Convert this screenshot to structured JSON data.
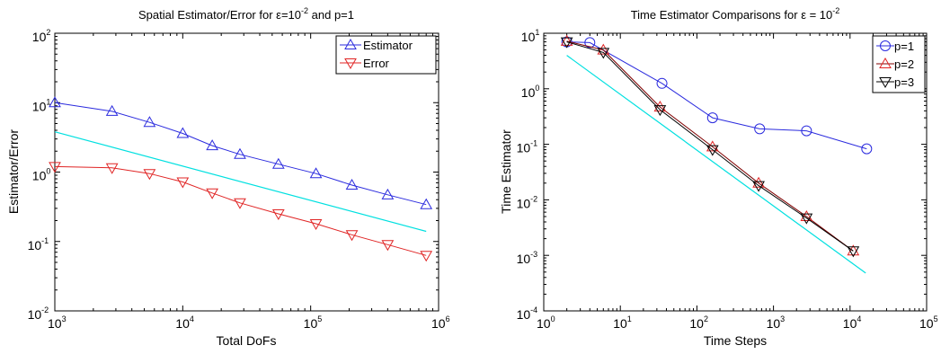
{
  "colors": {
    "blue": "#2b2bde",
    "red": "#e02424",
    "black": "#000000",
    "dark_red": "#800000",
    "cyan": "#00e0e0"
  },
  "chart_data": [
    {
      "type": "line",
      "title": "Spatial Estimator/Error for ε=10⁻² and p=1",
      "title_parts": {
        "text": "Spatial Estimator/Error for ε=10",
        "exp": "-2",
        "tail": " and p=1"
      },
      "xlabel": "Total DoFs",
      "ylabel": "Estimator/Error",
      "xscale": "log",
      "yscale": "log",
      "xlim": [
        1000,
        1000000
      ],
      "ylim": [
        0.01,
        100
      ],
      "x_ticks": [
        {
          "base": "10",
          "exp": "3",
          "value": 1000
        },
        {
          "base": "10",
          "exp": "4",
          "value": 10000
        },
        {
          "base": "10",
          "exp": "5",
          "value": 100000
        },
        {
          "base": "10",
          "exp": "6",
          "value": 1000000
        }
      ],
      "y_ticks": [
        {
          "base": "10",
          "exp": "-2",
          "value": 0.01
        },
        {
          "base": "10",
          "exp": "-1",
          "value": 0.1
        },
        {
          "base": "10",
          "exp": "0",
          "value": 1
        },
        {
          "base": "10",
          "exp": "1",
          "value": 10
        },
        {
          "base": "10",
          "exp": "2",
          "value": 100
        }
      ],
      "legend_position": "top-right",
      "series": [
        {
          "name": "Estimator",
          "color": "blue",
          "marker": "triangle-up",
          "in_legend": true,
          "x": [
            1000,
            2800,
            5500,
            10000,
            17000,
            28000,
            56000,
            110000,
            210000,
            400000,
            800000
          ],
          "y": [
            10,
            7.5,
            5.2,
            3.6,
            2.4,
            1.8,
            1.3,
            0.95,
            0.65,
            0.47,
            0.34
          ]
        },
        {
          "name": "Error",
          "color": "red",
          "marker": "triangle-down",
          "in_legend": true,
          "x": [
            1000,
            2800,
            5500,
            10000,
            17000,
            28000,
            56000,
            110000,
            210000,
            400000,
            800000
          ],
          "y": [
            1.2,
            1.15,
            0.95,
            0.72,
            0.5,
            0.36,
            0.25,
            0.18,
            0.125,
            0.09,
            0.063
          ]
        },
        {
          "name": "reference slope",
          "color": "cyan",
          "marker": "none",
          "in_legend": false,
          "x": [
            1000,
            800000
          ],
          "y": [
            3.8,
            0.14
          ]
        }
      ]
    },
    {
      "type": "line",
      "title": "Time Estimator Comparisons for ε = 10⁻²",
      "title_parts": {
        "text": "Time Estimator Comparisons for ε = 10",
        "exp": "-2",
        "tail": ""
      },
      "xlabel": "Time Steps",
      "ylabel": "Time Estimator",
      "xscale": "log",
      "yscale": "log",
      "xlim": [
        1,
        100000
      ],
      "ylim": [
        0.0001,
        10
      ],
      "x_ticks": [
        {
          "base": "10",
          "exp": "0",
          "value": 1
        },
        {
          "base": "10",
          "exp": "1",
          "value": 10
        },
        {
          "base": "10",
          "exp": "2",
          "value": 100
        },
        {
          "base": "10",
          "exp": "3",
          "value": 1000
        },
        {
          "base": "10",
          "exp": "4",
          "value": 10000
        },
        {
          "base": "10",
          "exp": "5",
          "value": 100000
        }
      ],
      "y_ticks": [
        {
          "base": "10",
          "exp": "-4",
          "value": 0.0001
        },
        {
          "base": "10",
          "exp": "-3",
          "value": 0.001
        },
        {
          "base": "10",
          "exp": "-2",
          "value": 0.01
        },
        {
          "base": "10",
          "exp": "-1",
          "value": 0.1
        },
        {
          "base": "10",
          "exp": "0",
          "value": 1
        },
        {
          "base": "10",
          "exp": "1",
          "value": 10
        }
      ],
      "legend_position": "top-right",
      "series": [
        {
          "name": "p=1",
          "color": "blue",
          "marker": "circle",
          "in_legend": true,
          "x": [
            2,
            4,
            35,
            160,
            660,
            2700,
            16500
          ],
          "y": [
            7,
            6.8,
            1.25,
            0.3,
            0.19,
            0.175,
            0.083
          ]
        },
        {
          "name": "p=2",
          "color": "red",
          "line_color": "dark_red",
          "marker": "triangle-up",
          "in_legend": true,
          "x": [
            2,
            6,
            33,
            160,
            640,
            2700,
            11000
          ],
          "y": [
            7.2,
            5,
            0.47,
            0.09,
            0.02,
            0.005,
            0.0012
          ]
        },
        {
          "name": "p=3",
          "color": "black",
          "marker": "triangle-down",
          "in_legend": true,
          "x": [
            2,
            6,
            33,
            160,
            640,
            2700,
            11000
          ],
          "y": [
            7,
            4.5,
            0.42,
            0.08,
            0.018,
            0.0047,
            0.0012
          ]
        },
        {
          "name": "reference slope",
          "color": "cyan",
          "marker": "none",
          "in_legend": false,
          "x": [
            2,
            16000
          ],
          "y": [
            4,
            0.00048
          ]
        }
      ]
    }
  ]
}
